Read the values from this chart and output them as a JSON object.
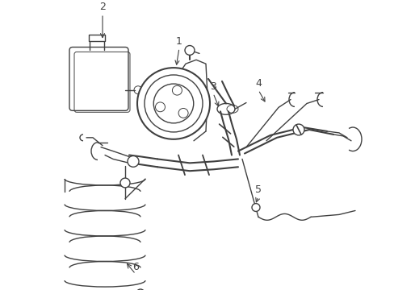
{
  "bg_color": "#ffffff",
  "line_color": "#404040",
  "lw": 1.0,
  "lw2": 1.5,
  "lw_thin": 0.7,
  "label_fs": 9
}
